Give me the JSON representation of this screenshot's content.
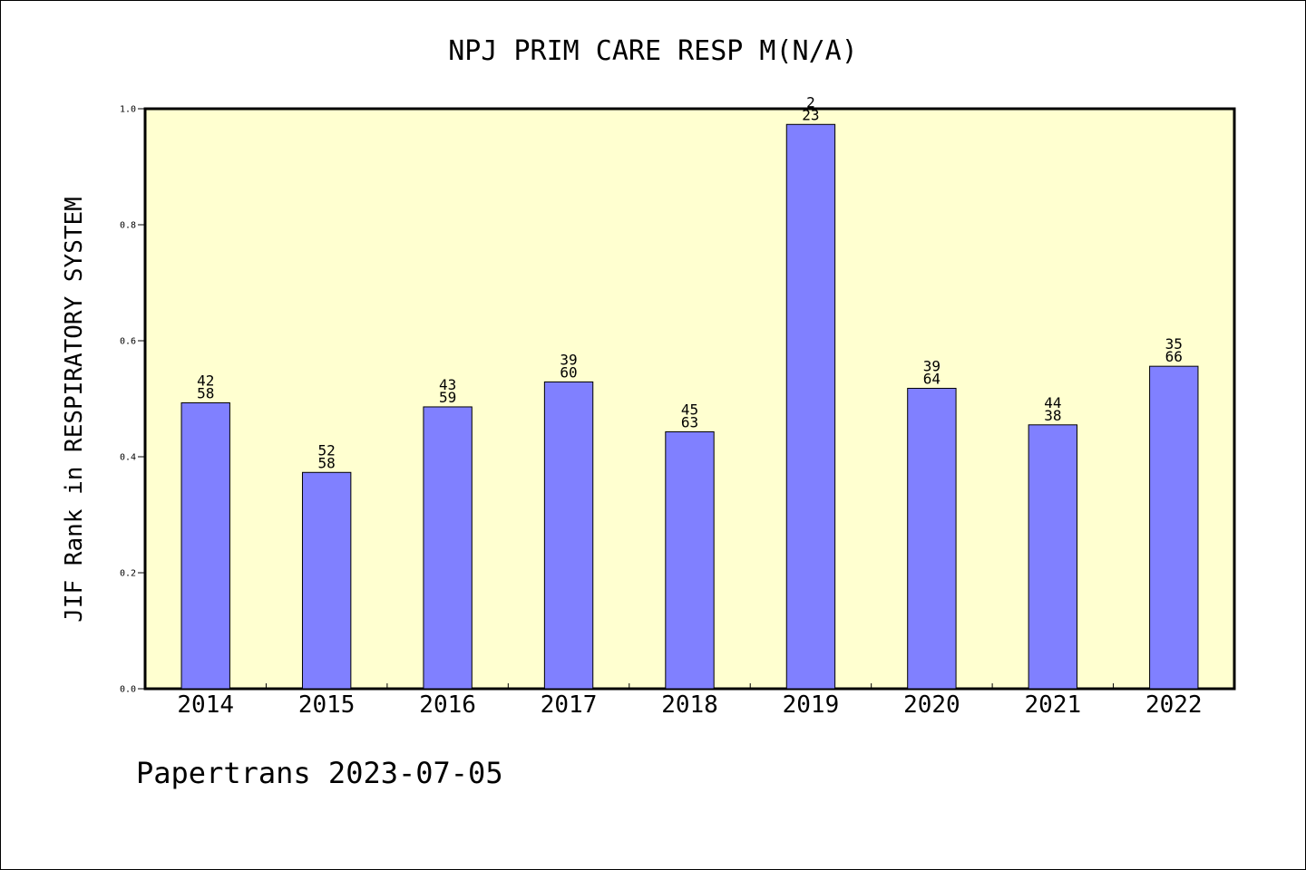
{
  "chart_data": {
    "type": "bar",
    "title": "NPJ PRIM CARE RESP M(N/A)",
    "xlabel": "",
    "ylabel": "JIF Rank in RESPIRATORY SYSTEM",
    "ylim": [
      0,
      1.0
    ],
    "yticks": [
      "0.0",
      "0.2",
      "0.4",
      "0.6",
      "0.8",
      "1.0"
    ],
    "categories": [
      "2014",
      "2015",
      "2016",
      "2017",
      "2018",
      "2019",
      "2020",
      "2021",
      "2022"
    ],
    "values": [
      0.493,
      0.373,
      0.486,
      0.529,
      0.443,
      0.973,
      0.518,
      0.455,
      0.556
    ],
    "rank_labels": [
      [
        "42",
        "58"
      ],
      [
        "52",
        "58"
      ],
      [
        "43",
        "59"
      ],
      [
        "39",
        "60"
      ],
      [
        "45",
        "63"
      ],
      [
        "2",
        "23"
      ],
      [
        "39",
        "64"
      ],
      [
        "44",
        "38"
      ],
      [
        "35",
        "66"
      ]
    ],
    "grid": false,
    "colors": {
      "bar": "#8080ff",
      "plot_background": "#ffffd0",
      "axis": "#000000"
    }
  },
  "footer": "Papertrans 2023-07-05"
}
